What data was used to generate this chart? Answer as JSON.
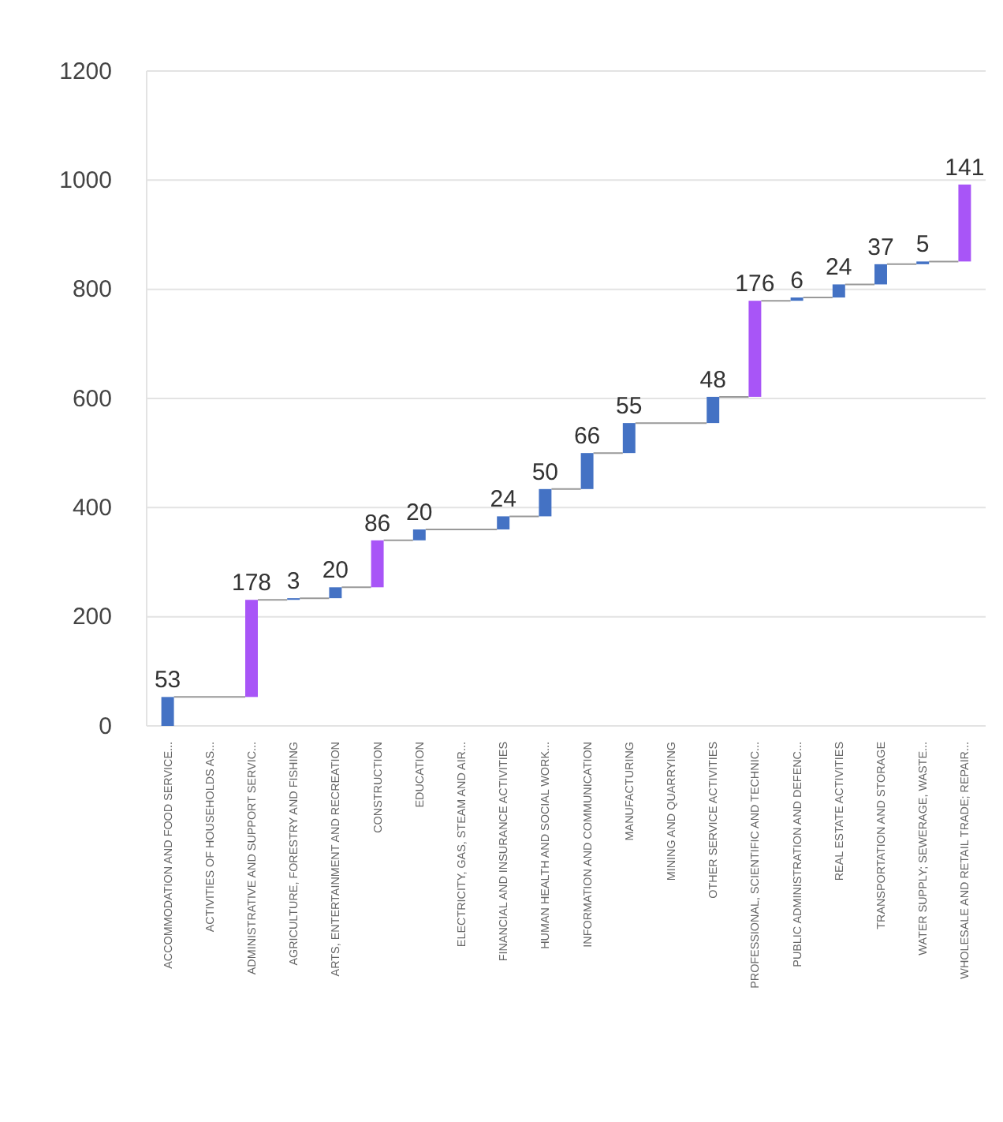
{
  "chart_data": {
    "type": "bar",
    "categories": [
      "ACCOMMODATION AND FOOD SERVICE...",
      "ACTIVITIES OF HOUSEHOLDS AS...",
      "ADMINISTRATIVE AND SUPPORT SERVIC...",
      "AGRICULTURE, FORESTRY AND FISHING",
      "ARTS, ENTERTAINMENT AND RECREATION",
      "CONSTRUCTION",
      "EDUCATION",
      "ELECTRICITY, GAS, STEAM AND AIR...",
      "FINANCIAL AND INSURANCE ACTIVITIES",
      "HUMAN HEALTH AND SOCIAL WORK...",
      "INFORMATION AND COMMUNICATION",
      "MANUFACTURING",
      "MINING AND QUARRYING",
      "OTHER SERVICE ACTIVITIES",
      "PROFESSIONAL, SCIENTIFIC AND TECHNIC...",
      "PUBLIC ADMINISTRATION AND DEFENC...",
      "REAL ESTATE ACTIVITIES",
      "TRANSPORTATION AND STORAGE",
      "WATER SUPPLY; SEWERAGE, WASTE...",
      "WHOLESALE AND RETAIL TRADE; REPAIR..."
    ],
    "values": [
      53,
      null,
      178,
      3,
      20,
      86,
      20,
      null,
      24,
      50,
      66,
      55,
      null,
      48,
      176,
      6,
      24,
      37,
      5,
      141
    ],
    "base": [
      0,
      null,
      53,
      231,
      234,
      254,
      340,
      null,
      360,
      384,
      434,
      500,
      null,
      555,
      603,
      779,
      785,
      809,
      846,
      851
    ],
    "value_labels": [
      "53",
      null,
      "178",
      "3",
      "20",
      "86",
      "20",
      null,
      "24",
      "50",
      "66",
      "55",
      null,
      "48",
      "176",
      "6",
      "24",
      "37",
      "5",
      "141"
    ],
    "colors": [
      "#4472c4",
      null,
      "#a855f7",
      "#4472c4",
      "#4472c4",
      "#a855f7",
      "#4472c4",
      null,
      "#4472c4",
      "#4472c4",
      "#4472c4",
      "#4472c4",
      null,
      "#4472c4",
      "#a855f7",
      "#4472c4",
      "#4472c4",
      "#4472c4",
      "#4472c4",
      "#a855f7"
    ],
    "ylim": [
      0,
      1200
    ],
    "yticks": [
      0,
      200,
      400,
      600,
      800,
      1000,
      1200
    ],
    "grid": "y"
  }
}
